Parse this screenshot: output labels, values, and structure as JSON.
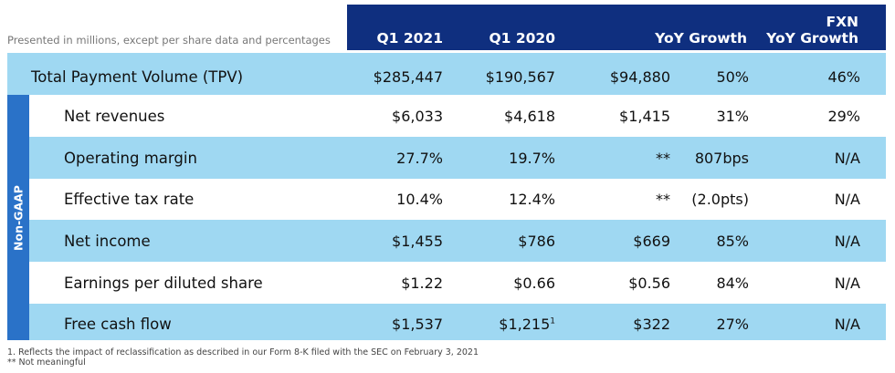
{
  "subtitle": "Presented in millions, except per share data and percentages",
  "header": {
    "q1_2021": "Q1 2021",
    "q1_2020": "Q1 2020",
    "yoy_growth": "YoY Growth",
    "fxn_line1": "FXN",
    "fxn_line2": "YoY Growth"
  },
  "sidebar_label": "Non-GAAP",
  "rows": [
    {
      "label": "Total Payment Volume (TPV)",
      "q1_2021": "$285,447",
      "q1_2020": "$190,567",
      "yoy_abs": "$94,880",
      "yoy_pct": "50%",
      "fxn": "46%"
    },
    {
      "label": "Net revenues",
      "q1_2021": "$6,033",
      "q1_2020": "$4,618",
      "yoy_abs": "$1,415",
      "yoy_pct": "31%",
      "fxn": "29%"
    },
    {
      "label": "Operating margin",
      "q1_2021": "27.7%",
      "q1_2020": "19.7%",
      "yoy_abs": "**",
      "yoy_pct": "807bps",
      "fxn": "N/A"
    },
    {
      "label": "Effective tax rate",
      "q1_2021": "10.4%",
      "q1_2020": "12.4%",
      "yoy_abs": "**",
      "yoy_pct": "(2.0pts)",
      "fxn": "N/A"
    },
    {
      "label": "Net income",
      "q1_2021": "$1,455",
      "q1_2020": "$786",
      "yoy_abs": "$669",
      "yoy_pct": "85%",
      "fxn": "N/A"
    },
    {
      "label": "Earnings per diluted share",
      "q1_2021": "$1.22",
      "q1_2020": "$0.66",
      "yoy_abs": "$0.56",
      "yoy_pct": "84%",
      "fxn": "N/A"
    },
    {
      "label": "Free cash flow",
      "q1_2021": "$1,537",
      "q1_2020": "$1,215",
      "q1_2020_sup": "1",
      "yoy_abs": "$322",
      "yoy_pct": "27%",
      "fxn": "N/A"
    }
  ],
  "footnotes": {
    "note1": "1.  Reflects the impact of reclassification as described in our Form 8-K filed with the SEC on February 3, 2021",
    "note2": "**  Not meaningful"
  },
  "colors": {
    "header_bg": "#0f2f7f",
    "row_blue": "#9fd8f2",
    "sidebar_bg": "#2a72c8"
  }
}
